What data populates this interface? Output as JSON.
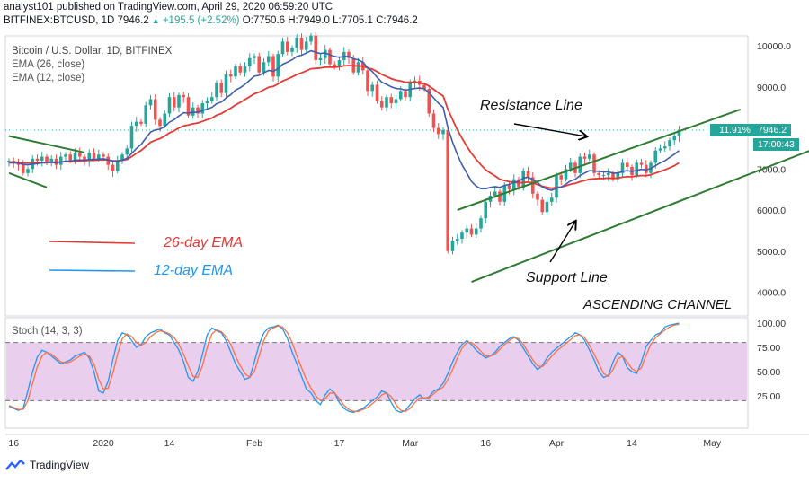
{
  "header": {
    "line1": "analyst101 published on TradingView.com, April 29, 2020 06:59:20 UTC",
    "symbol": "BITFINEX:BTCUSD, 1D",
    "last": "7946.2",
    "change": "+195.5 (+2.52%)",
    "open": "O:7750.6",
    "high": "H:7949.0",
    "low": "L:7705.1",
    "close": "C:7946.2"
  },
  "chart_title": "Bitcoin / U.S. Dollar, 1D, BITFINEX",
  "indicators": {
    "ema26": "EMA (26, close)",
    "ema12": "EMA (12, close)",
    "stoch": "Stoch (14, 3, 3)"
  },
  "price_tags": {
    "pct": "11.91%",
    "price": "7946.2",
    "countdown": "17:00:43"
  },
  "annotations": {
    "resistance": "Resistance Line",
    "support": "Support Line",
    "channel": "ASCENDING CHANNEL",
    "ema26_legend": "26-day EMA",
    "ema12_legend": "12-day EMA"
  },
  "footer": {
    "brand": "TradingView"
  },
  "colors": {
    "up": "#26a69a",
    "down": "#ef5350",
    "ema26": "#e53935",
    "ema12": "#3d5eb0",
    "trend": "#2e7d32",
    "stoch_k": "#2196f3",
    "stoch_d": "#ff7043",
    "stoch_band": "#e1bee7"
  },
  "chart_data": [
    {
      "type": "candlestick",
      "title": "Bitcoin / U.S. Dollar, 1D, BITFINEX",
      "x_ticks": [
        "16",
        "2020",
        "14",
        "Feb",
        "17",
        "Mar",
        "16",
        "Apr",
        "14",
        "May"
      ],
      "y_ticks": [
        4000,
        5000,
        6000,
        7000,
        8000,
        9000,
        10000
      ],
      "ylim": [
        3700,
        10400
      ],
      "last_price": 7946.2,
      "dotted_level": 7946.2,
      "close": [
        7200,
        7150,
        7100,
        6900,
        7000,
        7250,
        7200,
        7300,
        7150,
        7250,
        7100,
        7300,
        7350,
        7200,
        7400,
        7300,
        7200,
        7400,
        7250,
        7350,
        7300,
        7100,
        6950,
        7200,
        7350,
        7500,
        8050,
        8150,
        8100,
        8550,
        8700,
        8200,
        8050,
        8350,
        8750,
        8500,
        8800,
        8750,
        8300,
        8500,
        8350,
        8600,
        8650,
        8750,
        9100,
        8850,
        9300,
        9250,
        9500,
        9350,
        9500,
        9700,
        9750,
        9350,
        9600,
        9750,
        9250,
        9800,
        10100,
        9850,
        9950,
        10200,
        9900,
        10100,
        10250,
        9650,
        9700,
        9900,
        9550,
        9500,
        9650,
        9850,
        9700,
        9350,
        9600,
        9400,
        8900,
        9050,
        8650,
        8500,
        8750,
        8600,
        8700,
        8900,
        8750,
        9100,
        9150,
        9050,
        8950,
        8350,
        8000,
        7850,
        7950,
        5000,
        5250,
        5300,
        5450,
        5550,
        5400,
        5550,
        5800,
        6200,
        6350,
        6450,
        6200,
        6600,
        6500,
        6750,
        6550,
        6950,
        6800,
        6400,
        6250,
        5950,
        6200,
        6300,
        6850,
        6750,
        7000,
        7150,
        6900,
        7300,
        7250,
        7350,
        6900,
        6850,
        6850,
        6900,
        6750,
        6900,
        7150,
        7050,
        6850,
        7150,
        7100,
        6900,
        7150,
        7450,
        7500,
        7550,
        7700,
        7800,
        7950
      ],
      "ema26": [
        7170,
        7165,
        7160,
        7150,
        7145,
        7150,
        7155,
        7160,
        7160,
        7165,
        7160,
        7170,
        7180,
        7175,
        7190,
        7195,
        7200,
        7210,
        7210,
        7220,
        7225,
        7220,
        7200,
        7200,
        7210,
        7230,
        7300,
        7380,
        7450,
        7550,
        7650,
        7700,
        7740,
        7800,
        7880,
        7930,
        8000,
        8050,
        8070,
        8100,
        8120,
        8160,
        8200,
        8240,
        8310,
        8350,
        8420,
        8480,
        8560,
        8620,
        8690,
        8760,
        8830,
        8870,
        8930,
        8990,
        9010,
        9070,
        9140,
        9190,
        9240,
        9300,
        9340,
        9390,
        9440,
        9450,
        9460,
        9480,
        9480,
        9480,
        9490,
        9510,
        9520,
        9510,
        9510,
        9500,
        9460,
        9430,
        9370,
        9300,
        9250,
        9200,
        9160,
        9140,
        9110,
        9110,
        9110,
        9100,
        9080,
        9020,
        8940,
        8850,
        8780,
        8450,
        8200,
        7950,
        7750,
        7550,
        7380,
        7230,
        7100,
        6980,
        6900,
        6830,
        6750,
        6720,
        6690,
        6680,
        6660,
        6670,
        6680,
        6660,
        6620,
        6580,
        6550,
        6530,
        6550,
        6560,
        6590,
        6630,
        6650,
        6690,
        6720,
        6750,
        6760,
        6770,
        6770,
        6780,
        6770,
        6780,
        6800,
        6810,
        6810,
        6830,
        6840,
        6840,
        6860,
        6900,
        6940,
        6980,
        7030,
        7080,
        7150
      ],
      "ema12": [
        7150,
        7150,
        7140,
        7110,
        7100,
        7120,
        7130,
        7150,
        7150,
        7160,
        7150,
        7170,
        7190,
        7190,
        7210,
        7220,
        7210,
        7230,
        7230,
        7240,
        7250,
        7220,
        7190,
        7190,
        7220,
        7260,
        7380,
        7500,
        7600,
        7750,
        7900,
        7950,
        7970,
        8030,
        8140,
        8200,
        8290,
        8370,
        8360,
        8380,
        8380,
        8420,
        8460,
        8500,
        8590,
        8630,
        8730,
        8810,
        8920,
        8980,
        9060,
        9160,
        9260,
        9280,
        9340,
        9400,
        9380,
        9440,
        9550,
        9600,
        9660,
        9740,
        9770,
        9820,
        9880,
        9840,
        9810,
        9830,
        9780,
        9740,
        9720,
        9740,
        9740,
        9680,
        9660,
        9600,
        9460,
        9370,
        9230,
        9110,
        9060,
        9000,
        8960,
        8950,
        8920,
        8940,
        8960,
        8970,
        8950,
        8860,
        8730,
        8600,
        8500,
        8000,
        7650,
        7350,
        7100,
        6900,
        6700,
        6580,
        6520,
        6520,
        6550,
        6570,
        6550,
        6600,
        6620,
        6680,
        6700,
        6780,
        6800,
        6740,
        6670,
        6560,
        6510,
        6480,
        6530,
        6560,
        6630,
        6710,
        6750,
        6840,
        6900,
        6960,
        6950,
        6940,
        6930,
        6930,
        6900,
        6900,
        6940,
        6960,
        6940,
        6970,
        6990,
        6980,
        7010,
        7080,
        7150,
        7200,
        7280,
        7360,
        7450
      ],
      "resistance_line": [
        [
          95,
          6000
        ],
        [
          155,
          8450
        ]
      ],
      "support_line": [
        [
          98,
          4250
        ],
        [
          172,
          7550
        ]
      ],
      "left_resistance": [
        [
          0,
          7800
        ],
        [
          16,
          7400
        ]
      ],
      "left_support": [
        [
          0,
          6900
        ],
        [
          8,
          6550
        ]
      ]
    },
    {
      "type": "line",
      "title": "Stoch (14, 3, 3)",
      "y_ticks": [
        25.0,
        50.0,
        75.0,
        100.0
      ],
      "ylim": [
        0,
        105
      ],
      "band": [
        20,
        80
      ],
      "series": [
        {
          "name": "%K",
          "values": [
            14,
            12,
            10,
            12,
            30,
            50,
            65,
            72,
            70,
            66,
            62,
            58,
            60,
            62,
            66,
            68,
            70,
            64,
            50,
            30,
            28,
            40,
            62,
            82,
            90,
            88,
            82,
            75,
            78,
            86,
            90,
            92,
            94,
            90,
            88,
            80,
            72,
            60,
            44,
            40,
            50,
            68,
            88,
            95,
            92,
            90,
            82,
            70,
            58,
            50,
            42,
            44,
            60,
            78,
            90,
            95,
            96,
            98,
            94,
            84,
            70,
            58,
            45,
            32,
            28,
            20,
            16,
            26,
            32,
            28,
            18,
            12,
            9,
            8,
            10,
            12,
            16,
            20,
            24,
            30,
            28,
            18,
            10,
            8,
            10,
            16,
            22,
            26,
            22,
            24,
            30,
            32,
            38,
            48,
            60,
            70,
            78,
            82,
            78,
            72,
            68,
            64,
            66,
            70,
            76,
            80,
            84,
            86,
            82,
            74,
            66,
            58,
            52,
            56,
            64,
            70,
            74,
            78,
            82,
            86,
            90,
            88,
            82,
            72,
            62,
            50,
            44,
            46,
            60,
            70,
            66,
            54,
            50,
            48,
            60,
            76,
            82,
            88,
            90,
            96,
            98,
            99,
            100
          ]
        },
        {
          "name": "%D",
          "values": [
            15,
            13,
            11,
            11,
            20,
            38,
            55,
            66,
            70,
            68,
            64,
            60,
            59,
            60,
            63,
            66,
            68,
            66,
            58,
            42,
            32,
            33,
            48,
            68,
            84,
            89,
            86,
            80,
            77,
            80,
            86,
            90,
            92,
            91,
            89,
            85,
            78,
            68,
            56,
            45,
            44,
            56,
            75,
            89,
            93,
            91,
            86,
            78,
            66,
            56,
            48,
            44,
            50,
            66,
            82,
            92,
            95,
            97,
            96,
            90,
            80,
            66,
            54,
            42,
            33,
            25,
            20,
            22,
            28,
            28,
            22,
            15,
            11,
            9,
            9,
            11,
            13,
            17,
            21,
            26,
            28,
            24,
            16,
            10,
            9,
            12,
            18,
            23,
            23,
            23,
            27,
            31,
            34,
            42,
            52,
            64,
            74,
            80,
            80,
            76,
            71,
            66,
            66,
            68,
            73,
            78,
            82,
            85,
            84,
            78,
            70,
            62,
            56,
            55,
            60,
            66,
            71,
            75,
            79,
            83,
            87,
            88,
            85,
            77,
            68,
            58,
            48,
            45,
            52,
            63,
            66,
            60,
            53,
            50,
            54,
            67,
            78,
            85,
            89,
            93,
            96,
            98,
            99
          ]
        }
      ]
    }
  ]
}
